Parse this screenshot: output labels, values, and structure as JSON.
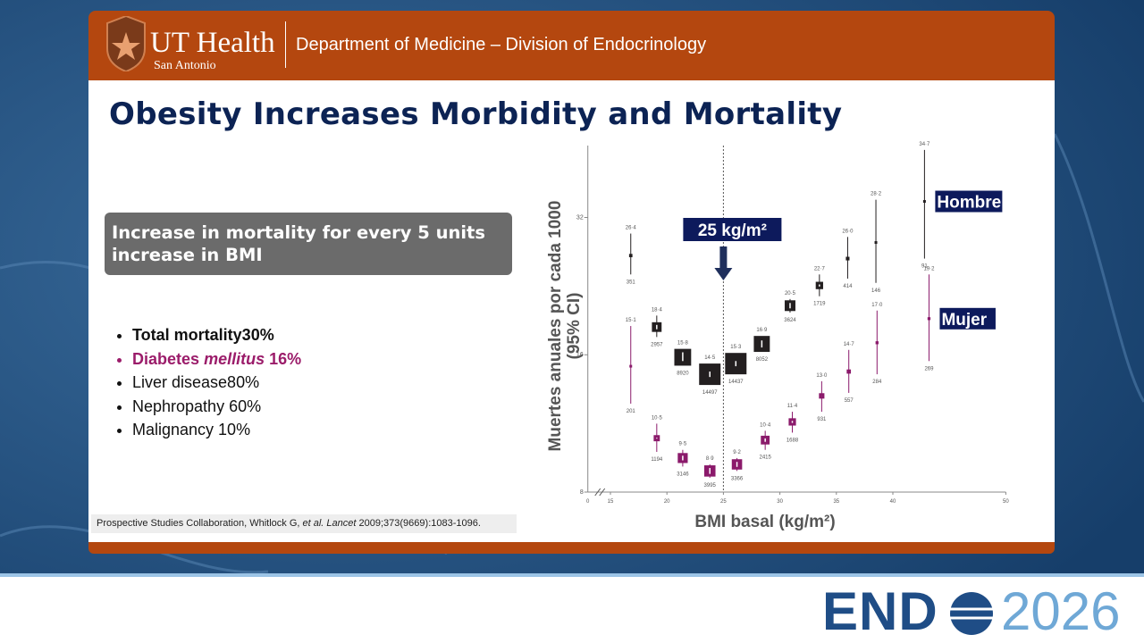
{
  "header": {
    "logo_name": "UT Health",
    "logo_sub": "San Antonio",
    "department": "Department of Medicine – Division of Endocrinology"
  },
  "title": "Obesity Increases Morbidity and Mortality",
  "callout": "Increase in mortality for every 5 units increase in BMI",
  "bullets": [
    [
      "Total mortality30%"
    ],
    [
      "Diabetes",
      "mellitus",
      "16%"
    ],
    [
      "Liver disease80%"
    ],
    [
      "Nephropathy 60%"
    ],
    [
      "Malignancy 10%"
    ]
  ],
  "citation": [
    "Prospective Studies Collaboration, Whitlock G,",
    "et al.",
    "Lancet",
    "2009;373(9669):1083-1096."
  ],
  "footer": {
    "brand": "END",
    "year": "2026"
  },
  "chart_data": {
    "type": "scatter",
    "ylabel": "Muertes anuales por cada 1000",
    "ylabel_sub": "(95% CI)",
    "xlabel": "BMI basal (kg/m²)",
    "yscale": "log",
    "ylim": [
      8,
      46
    ],
    "yticks": [
      8,
      16,
      32
    ],
    "xlim": [
      13,
      50
    ],
    "xticks": [
      15,
      20,
      25,
      30,
      35,
      40,
      50
    ],
    "x_break_label": "0",
    "reference": {
      "x": 25,
      "label": "25 kg/m²"
    },
    "series": [
      {
        "name": "Hombre",
        "color": "#231f20",
        "x": [
          16.8,
          19.1,
          21.4,
          23.8,
          26.1,
          28.4,
          30.9,
          33.5,
          36.0,
          38.5,
          42.8
        ],
        "values": [
          26.4,
          18.4,
          15.8,
          14.5,
          15.3,
          16.9,
          20.5,
          22.7,
          26.0,
          28.2,
          34.7
        ],
        "value_labels": [
          "26·4",
          "18·4",
          "15·8",
          "14·5",
          "15·3",
          "16·9",
          "20·5",
          "22·7",
          "26·0",
          "28·2",
          "34·7"
        ],
        "lower": [
          24,
          17.5,
          15.5,
          14.3,
          15.1,
          16.6,
          19.8,
          21.5,
          23.5,
          23,
          26
        ],
        "upper": [
          29.5,
          19.5,
          16.2,
          14.7,
          15.5,
          17.2,
          21.2,
          24,
          29,
          35,
          45
        ],
        "n": [
          351,
          2957,
          8920,
          14497,
          14437,
          8052,
          3624,
          1719,
          414,
          146,
          91
        ]
      },
      {
        "name": "Mujer",
        "color": "#8b1a6b",
        "x": [
          16.8,
          19.1,
          21.4,
          23.8,
          26.2,
          28.7,
          31.1,
          33.7,
          36.1,
          38.6,
          43.2
        ],
        "values": [
          15.1,
          10.5,
          9.5,
          8.9,
          9.2,
          10.4,
          11.4,
          13.0,
          14.7,
          17.0,
          19.2
        ],
        "value_labels": [
          "15·1",
          "10·5",
          "9·5",
          "8·9",
          "9·2",
          "10·4",
          "11·4",
          "13·0",
          "14·7",
          "17·0",
          "19·2"
        ],
        "lower": [
          12.5,
          9.8,
          9.1,
          8.6,
          8.9,
          9.9,
          10.8,
          12,
          13.2,
          14.5,
          15.5
        ],
        "upper": [
          18.5,
          11.3,
          9.9,
          9.2,
          9.5,
          10.9,
          12,
          14,
          16.4,
          20,
          24
        ],
        "n": [
          201,
          1194,
          3146,
          3995,
          3366,
          2415,
          1688,
          931,
          557,
          284,
          269
        ]
      }
    ]
  }
}
